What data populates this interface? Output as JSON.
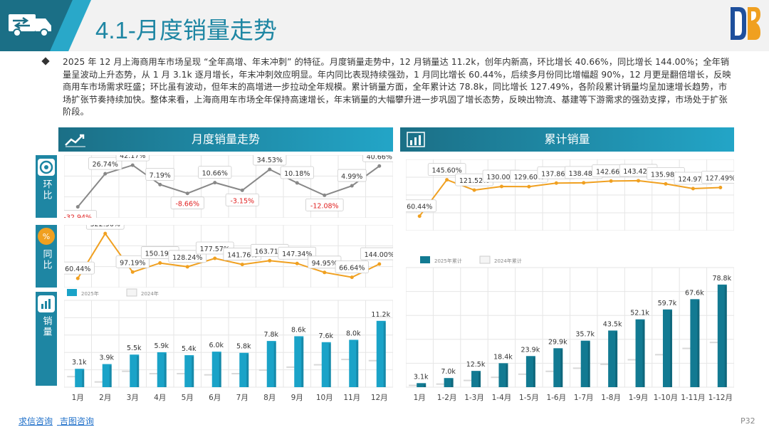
{
  "title": "4.1-月度销量走势",
  "intro": "2025 年 12 月上海商用车市场呈现 “全年高增、年末冲刺” 的特征。月度销量走势中，12 月销量达 11.2k，创年内新高，环比增长 40.66%，同比增长 144.00%；全年销量呈波动上升态势，从 1 月 3.1k 逐月增长，年末冲刺效应明显。年内同比表现持续强劲，1 月同比增长 60.44%，后续多月份同比增幅超 90%，12 月更是翻倍增长，反映商用车市场需求旺盛；环比虽有波动，但年末的高增进一步拉动全年规模。累计销量方面，全年累计达 78.8k，同比增长 127.49%，各阶段累计销量均呈加速增长趋势，市场扩张节奏持续加快。整体来看，上海商用车市场全年保持高速增长，年末销量的大幅攀升进一步巩固了增长态势，反映出物流、基建等下游需求的强劲支撑，市场处于扩张阶段。",
  "left_header": "月度销量走势",
  "right_header": "累计销量",
  "tabs": {
    "mom": "环比",
    "yoy": "同比",
    "sales": "销量"
  },
  "footer": {
    "link1": "求信咨询",
    "link2": "吉图咨询",
    "page": "P32"
  },
  "colors": {
    "teal": "#1e86a3",
    "bar": "#1aa3c8",
    "bar_dark": "#127a92",
    "orange": "#f0a020",
    "gray": "#999999"
  },
  "chart_data": [
    {
      "type": "line",
      "name_ref": "mom",
      "categories": [
        "1月",
        "2月",
        "3月",
        "4月",
        "5月",
        "6月",
        "7月",
        "8月",
        "9月",
        "10月",
        "11月",
        "12月"
      ],
      "values": [
        -32.94,
        26.74,
        42.17,
        7.19,
        -8.66,
        10.66,
        -3.15,
        34.53,
        10.18,
        -12.08,
        4.99,
        40.66
      ],
      "labels": [
        "-32.94%",
        "26.74%",
        "42.17%",
        "7.19%",
        "-8.66%",
        "10.66%",
        "-3.15%",
        "34.53%",
        "10.18%",
        "-12.08%",
        "4.99%",
        "40.66%"
      ]
    },
    {
      "type": "line",
      "name_ref": "yoy",
      "categories": [
        "1月",
        "2月",
        "3月",
        "4月",
        "5月",
        "6月",
        "7月",
        "8月",
        "9月",
        "10月",
        "11月",
        "12月"
      ],
      "values": [
        60.44,
        322.56,
        97.19,
        150.19,
        128.24,
        177.57,
        141.76,
        163.71,
        147.34,
        94.95,
        66.64,
        144.0
      ],
      "labels": [
        "60.44%",
        "322.56%",
        "97.19%",
        "150.19%",
        "128.24%",
        "177.57%",
        "141.76%",
        "163.71%",
        "147.34%",
        "94.95%",
        "66.64%",
        "144.00%"
      ]
    },
    {
      "type": "bar",
      "legend": [
        "2025年",
        "2024年"
      ],
      "categories": [
        "1月",
        "2月",
        "3月",
        "4月",
        "5月",
        "6月",
        "7月",
        "8月",
        "9月",
        "10月",
        "11月",
        "12月"
      ],
      "series": [
        {
          "name": "2025年",
          "values": [
            3.1,
            3.9,
            5.5,
            5.9,
            5.4,
            6.0,
            5.8,
            7.8,
            8.6,
            7.6,
            8.0,
            11.2
          ],
          "labels": [
            "3.1k",
            "3.9k",
            "5.5k",
            "5.9k",
            "5.4k",
            "6.0k",
            "5.8k",
            "7.8k",
            "8.6k",
            "7.6k",
            "8.0k",
            "11.2k"
          ]
        },
        {
          "name": "2024年",
          "values": [
            1.9,
            1.0,
            2.8,
            2.4,
            2.4,
            2.2,
            2.4,
            3.0,
            3.5,
            3.9,
            4.8,
            4.6
          ]
        }
      ]
    },
    {
      "type": "line",
      "categories": [
        "1月",
        "1-2月",
        "1-3月",
        "1-4月",
        "1-5月",
        "1-6月",
        "1-7月",
        "1-8月",
        "1-9月",
        "1-10月",
        "1-11月",
        "1-12月"
      ],
      "values": [
        60.44,
        145.6,
        121.52,
        130.0,
        129.6,
        137.86,
        138.48,
        142.66,
        143.42,
        135.98,
        124.97,
        127.49
      ],
      "labels": [
        "60.44%",
        "145.60%",
        "121.52%",
        "130.00%",
        "129.60%",
        "137.86%",
        "138.48%",
        "142.66%",
        "143.42%",
        "135.98%",
        "124.97%",
        "127.49%"
      ]
    },
    {
      "type": "bar",
      "legend": [
        "2025年累计",
        "2024年累计"
      ],
      "categories": [
        "1月",
        "1-2月",
        "1-3月",
        "1-4月",
        "1-5月",
        "1-6月",
        "1-7月",
        "1-8月",
        "1-9月",
        "1-10月",
        "1-11月",
        "1-12月"
      ],
      "series": [
        {
          "name": "2025年累计",
          "values": [
            3.1,
            7.0,
            12.5,
            18.4,
            23.9,
            29.9,
            35.7,
            43.5,
            52.1,
            59.7,
            67.6,
            78.8
          ],
          "labels": [
            "3.1k",
            "7.0k",
            "12.5k",
            "18.4k",
            "23.9k",
            "29.9k",
            "35.7k",
            "43.5k",
            "52.1k",
            "59.7k",
            "67.6k",
            "78.8k"
          ]
        },
        {
          "name": "2024年累计",
          "values": [
            1.9,
            2.9,
            5.7,
            8.1,
            10.5,
            12.7,
            15.1,
            18.1,
            21.6,
            25.5,
            30.3,
            34.9
          ]
        }
      ]
    }
  ]
}
